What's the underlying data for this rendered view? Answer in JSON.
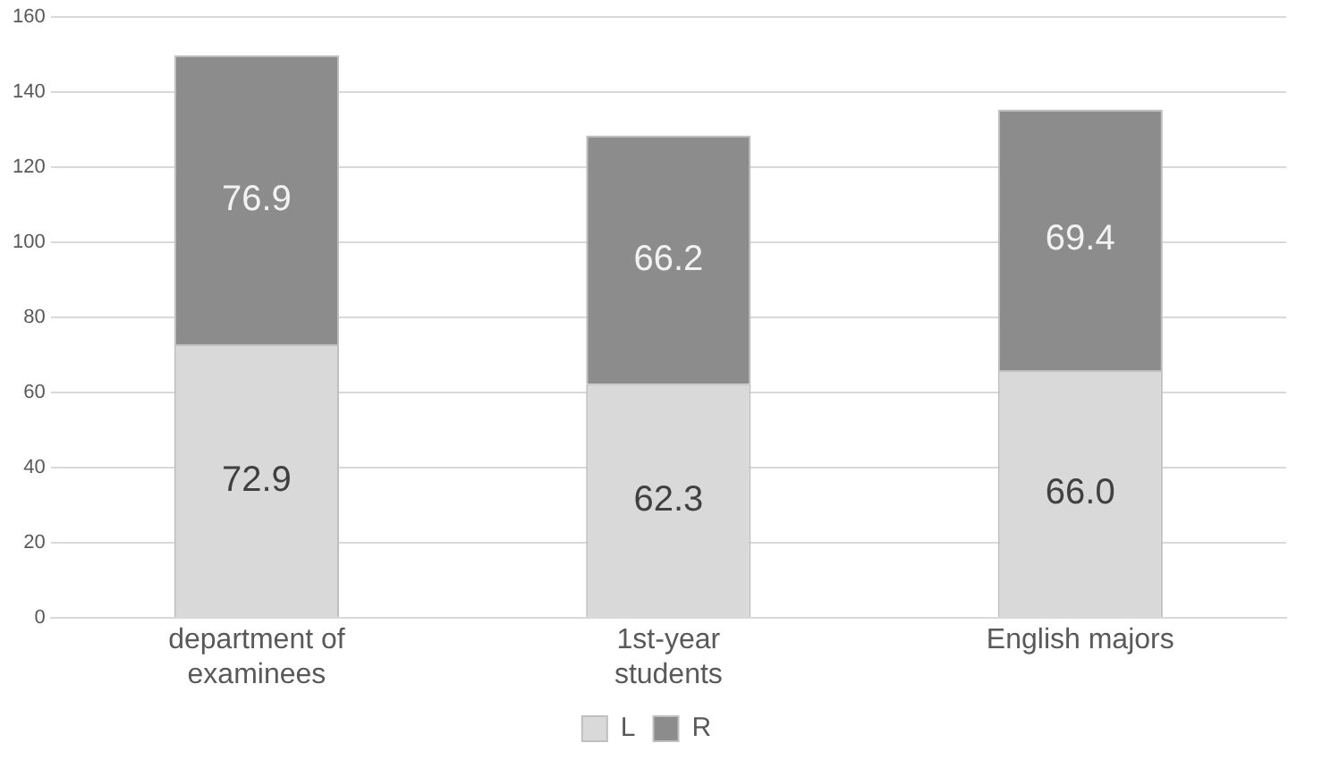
{
  "chart_data": {
    "type": "bar",
    "stacked": true,
    "categories": [
      "department of examinees",
      "1st-year students",
      "English majors"
    ],
    "series": [
      {
        "name": "L",
        "color": "#d9d9d9",
        "values": [
          72.9,
          62.3,
          66.0
        ],
        "value_labels": [
          "72.9",
          "62.3",
          "66.0"
        ]
      },
      {
        "name": "R",
        "color": "#8c8c8c",
        "values": [
          76.9,
          66.2,
          69.4
        ],
        "value_labels": [
          "76.9",
          "66.2",
          "69.4"
        ]
      }
    ],
    "ylim": [
      0,
      160
    ],
    "yticks": [
      0,
      20,
      40,
      60,
      80,
      100,
      120,
      140,
      160
    ],
    "grid": "y",
    "legend": "bottom"
  }
}
